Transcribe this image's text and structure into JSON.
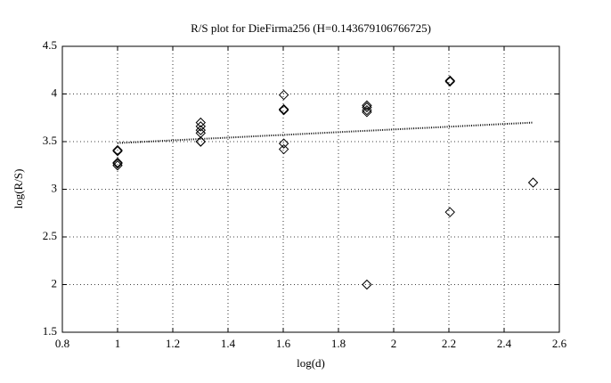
{
  "chart_data": {
    "type": "scatter",
    "title": "R/S plot for DieFirma256 (H=0.143679106766725)",
    "xlabel": "log(d)",
    "ylabel": "log(R/S)",
    "xlim": [
      0.8,
      2.6
    ],
    "ylim": [
      1.5,
      4.5
    ],
    "xticks": [
      0.8,
      1,
      1.2,
      1.4,
      1.6,
      1.8,
      2,
      2.2,
      2.4,
      2.6
    ],
    "yticks": [
      1.5,
      2,
      2.5,
      3,
      3.5,
      4,
      4.5
    ],
    "grid": true,
    "series": [
      {
        "color": "#000000",
        "marker": "diamond",
        "x": [
          1,
          1,
          1,
          1,
          1,
          1.301,
          1.301,
          1.301,
          1.301,
          1.301,
          1.301,
          1.602,
          1.602,
          1.602,
          1.602,
          1.602,
          1.903,
          1.903,
          1.903,
          1.903,
          1.903,
          2.204,
          2.204,
          2.204,
          2.505
        ],
        "values": [
          3.41,
          3.4,
          3.27,
          3.25,
          3.28,
          3.7,
          3.66,
          3.62,
          3.59,
          3.5,
          3.5,
          3.99,
          3.84,
          3.83,
          3.48,
          3.42,
          3.88,
          3.86,
          3.83,
          3.81,
          2.0,
          4.14,
          4.13,
          2.76,
          3.07
        ]
      },
      {
        "color": "#000000",
        "style": "dotted",
        "x": [
          1,
          2.505
        ],
        "values": [
          3.485,
          3.7
        ]
      }
    ]
  }
}
